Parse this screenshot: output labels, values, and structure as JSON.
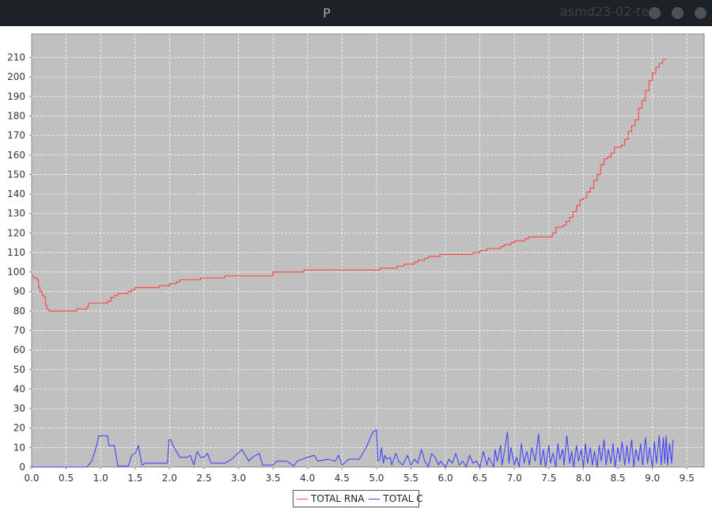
{
  "window": {
    "title": "P",
    "title_ghost": "asmd23-02-te..."
  },
  "colors": {
    "plot_bg": "#c0c0c0",
    "grid": "#ffffff",
    "rna": "#ff4444",
    "c": "#4444ff"
  },
  "chart_data": {
    "type": "line",
    "title": "",
    "xlabel": "",
    "ylabel": "",
    "xlim": [
      0.0,
      9.75
    ],
    "ylim": [
      0,
      222
    ],
    "x_ticks": [
      "0.0",
      "0.5",
      "1.0",
      "1.5",
      "2.0",
      "2.5",
      "3.0",
      "3.5",
      "4.0",
      "4.5",
      "5.0",
      "5.5",
      "6.0",
      "6.5",
      "7.0",
      "7.5",
      "8.0",
      "8.5",
      "9.0",
      "9.5"
    ],
    "y_ticks": [
      "0",
      "10",
      "20",
      "30",
      "40",
      "50",
      "60",
      "70",
      "80",
      "90",
      "100",
      "110",
      "120",
      "130",
      "140",
      "150",
      "160",
      "170",
      "180",
      "190",
      "200",
      "210"
    ],
    "grid": true,
    "legend_position": "bottom-center",
    "series": [
      {
        "name": "TOTAL RNA",
        "color": "#ff4444",
        "step": true,
        "points": [
          [
            0.0,
            98
          ],
          [
            0.03,
            97
          ],
          [
            0.08,
            96
          ],
          [
            0.1,
            92
          ],
          [
            0.12,
            90
          ],
          [
            0.15,
            88
          ],
          [
            0.18,
            87
          ],
          [
            0.2,
            83
          ],
          [
            0.22,
            81
          ],
          [
            0.25,
            80
          ],
          [
            0.6,
            80
          ],
          [
            0.65,
            81
          ],
          [
            0.8,
            82
          ],
          [
            0.82,
            84
          ],
          [
            1.05,
            84
          ],
          [
            1.1,
            85
          ],
          [
            1.15,
            87
          ],
          [
            1.2,
            88
          ],
          [
            1.25,
            89
          ],
          [
            1.4,
            90
          ],
          [
            1.45,
            91
          ],
          [
            1.5,
            92
          ],
          [
            1.8,
            92
          ],
          [
            1.85,
            93
          ],
          [
            2.0,
            94
          ],
          [
            2.1,
            95
          ],
          [
            2.15,
            96
          ],
          [
            2.4,
            96
          ],
          [
            2.45,
            97
          ],
          [
            2.7,
            97
          ],
          [
            2.8,
            98
          ],
          [
            3.4,
            98
          ],
          [
            3.5,
            99
          ],
          [
            3.5,
            100
          ],
          [
            3.9,
            100
          ],
          [
            3.95,
            101
          ],
          [
            5.0,
            101
          ],
          [
            5.05,
            102
          ],
          [
            5.25,
            102
          ],
          [
            5.3,
            103
          ],
          [
            5.4,
            104
          ],
          [
            5.55,
            105
          ],
          [
            5.6,
            106
          ],
          [
            5.7,
            107
          ],
          [
            5.75,
            108
          ],
          [
            5.9,
            108
          ],
          [
            5.92,
            109
          ],
          [
            6.35,
            109
          ],
          [
            6.4,
            110
          ],
          [
            6.5,
            111
          ],
          [
            6.6,
            112
          ],
          [
            6.75,
            112
          ],
          [
            6.8,
            113
          ],
          [
            6.85,
            114
          ],
          [
            6.95,
            115
          ],
          [
            7.0,
            116
          ],
          [
            7.15,
            117
          ],
          [
            7.2,
            118
          ],
          [
            7.5,
            118
          ],
          [
            7.55,
            120
          ],
          [
            7.6,
            123
          ],
          [
            7.7,
            124
          ],
          [
            7.75,
            126
          ],
          [
            7.8,
            128
          ],
          [
            7.85,
            131
          ],
          [
            7.9,
            134
          ],
          [
            7.95,
            137
          ],
          [
            8.0,
            138
          ],
          [
            8.05,
            141
          ],
          [
            8.1,
            143
          ],
          [
            8.15,
            147
          ],
          [
            8.2,
            150
          ],
          [
            8.25,
            155
          ],
          [
            8.3,
            158
          ],
          [
            8.35,
            159
          ],
          [
            8.4,
            161
          ],
          [
            8.45,
            164
          ],
          [
            8.55,
            165
          ],
          [
            8.6,
            168
          ],
          [
            8.65,
            172
          ],
          [
            8.7,
            175
          ],
          [
            8.75,
            178
          ],
          [
            8.8,
            184
          ],
          [
            8.85,
            188
          ],
          [
            8.9,
            193
          ],
          [
            8.95,
            198
          ],
          [
            9.0,
            202
          ],
          [
            9.05,
            205
          ],
          [
            9.1,
            207
          ],
          [
            9.15,
            209
          ],
          [
            9.2,
            209
          ]
        ]
      },
      {
        "name": "TOTAL C",
        "color": "#4444ff",
        "step": false,
        "points": [
          [
            0.0,
            0
          ],
          [
            0.05,
            0
          ],
          [
            0.5,
            0
          ],
          [
            0.8,
            0
          ],
          [
            0.87,
            3
          ],
          [
            0.9,
            6
          ],
          [
            0.95,
            12
          ],
          [
            0.97,
            16
          ],
          [
            1.05,
            16
          ],
          [
            1.1,
            16
          ],
          [
            1.12,
            11
          ],
          [
            1.2,
            11
          ],
          [
            1.25,
            0.5
          ],
          [
            1.4,
            0.5
          ],
          [
            1.45,
            6
          ],
          [
            1.5,
            7
          ],
          [
            1.55,
            11
          ],
          [
            1.6,
            1
          ],
          [
            1.65,
            2
          ],
          [
            1.9,
            2
          ],
          [
            1.97,
            2
          ],
          [
            1.99,
            14
          ],
          [
            2.02,
            14
          ],
          [
            2.05,
            11
          ],
          [
            2.1,
            8
          ],
          [
            2.15,
            5
          ],
          [
            2.25,
            5
          ],
          [
            2.3,
            6
          ],
          [
            2.35,
            1
          ],
          [
            2.4,
            8
          ],
          [
            2.45,
            5
          ],
          [
            2.5,
            5
          ],
          [
            2.55,
            7
          ],
          [
            2.6,
            2
          ],
          [
            2.8,
            2
          ],
          [
            2.9,
            4
          ],
          [
            3.05,
            9
          ],
          [
            3.15,
            3
          ],
          [
            3.2,
            5
          ],
          [
            3.3,
            7
          ],
          [
            3.35,
            1
          ],
          [
            3.5,
            1
          ],
          [
            3.55,
            3
          ],
          [
            3.7,
            3
          ],
          [
            3.8,
            0.5
          ],
          [
            3.85,
            3
          ],
          [
            4.0,
            5
          ],
          [
            4.1,
            6
          ],
          [
            4.15,
            3
          ],
          [
            4.3,
            4
          ],
          [
            4.4,
            3
          ],
          [
            4.45,
            6
          ],
          [
            4.5,
            1
          ],
          [
            4.6,
            4
          ],
          [
            4.75,
            4
          ],
          [
            4.85,
            10
          ],
          [
            4.95,
            18
          ],
          [
            5.0,
            19
          ],
          [
            5.02,
            3
          ],
          [
            5.05,
            4
          ],
          [
            5.07,
            10
          ],
          [
            5.1,
            2
          ],
          [
            5.12,
            6
          ],
          [
            5.15,
            4
          ],
          [
            5.2,
            5
          ],
          [
            5.22,
            1
          ],
          [
            5.28,
            7
          ],
          [
            5.32,
            3
          ],
          [
            5.38,
            1
          ],
          [
            5.45,
            6
          ],
          [
            5.5,
            1
          ],
          [
            5.55,
            4
          ],
          [
            5.6,
            2
          ],
          [
            5.65,
            9
          ],
          [
            5.7,
            3
          ],
          [
            5.75,
            0
          ],
          [
            5.8,
            7
          ],
          [
            5.85,
            5
          ],
          [
            5.9,
            1
          ],
          [
            5.93,
            3
          ],
          [
            6.0,
            0
          ],
          [
            6.05,
            4
          ],
          [
            6.1,
            2
          ],
          [
            6.15,
            7
          ],
          [
            6.2,
            1
          ],
          [
            6.25,
            3
          ],
          [
            6.3,
            0
          ],
          [
            6.35,
            6
          ],
          [
            6.4,
            2
          ],
          [
            6.45,
            3
          ],
          [
            6.5,
            0
          ],
          [
            6.55,
            8
          ],
          [
            6.6,
            1
          ],
          [
            6.63,
            5
          ],
          [
            6.7,
            0
          ],
          [
            6.72,
            9
          ],
          [
            6.75,
            3
          ],
          [
            6.8,
            11
          ],
          [
            6.82,
            1
          ],
          [
            6.85,
            7
          ],
          [
            6.9,
            18
          ],
          [
            6.92,
            2
          ],
          [
            6.95,
            10
          ],
          [
            7.0,
            1
          ],
          [
            7.03,
            5
          ],
          [
            7.07,
            0
          ],
          [
            7.1,
            12
          ],
          [
            7.14,
            2
          ],
          [
            7.18,
            8
          ],
          [
            7.22,
            1
          ],
          [
            7.25,
            10
          ],
          [
            7.3,
            3
          ],
          [
            7.35,
            17
          ],
          [
            7.38,
            1
          ],
          [
            7.42,
            9
          ],
          [
            7.45,
            0
          ],
          [
            7.5,
            11
          ],
          [
            7.52,
            2
          ],
          [
            7.56,
            7
          ],
          [
            7.6,
            0
          ],
          [
            7.63,
            12
          ],
          [
            7.66,
            4
          ],
          [
            7.7,
            9
          ],
          [
            7.72,
            1
          ],
          [
            7.76,
            16
          ],
          [
            7.8,
            2
          ],
          [
            7.83,
            8
          ],
          [
            7.86,
            0
          ],
          [
            7.9,
            11
          ],
          [
            7.93,
            3
          ],
          [
            7.97,
            9
          ],
          [
            8.0,
            0
          ],
          [
            8.03,
            12
          ],
          [
            8.06,
            2
          ],
          [
            8.1,
            10
          ],
          [
            8.13,
            1
          ],
          [
            8.16,
            8
          ],
          [
            8.2,
            0
          ],
          [
            8.23,
            11
          ],
          [
            8.26,
            3
          ],
          [
            8.3,
            14
          ],
          [
            8.33,
            1
          ],
          [
            8.36,
            9
          ],
          [
            8.4,
            2
          ],
          [
            8.43,
            12
          ],
          [
            8.46,
            0
          ],
          [
            8.5,
            10
          ],
          [
            8.53,
            3
          ],
          [
            8.56,
            13
          ],
          [
            8.6,
            1
          ],
          [
            8.63,
            11
          ],
          [
            8.66,
            2
          ],
          [
            8.7,
            14
          ],
          [
            8.73,
            0
          ],
          [
            8.76,
            9
          ],
          [
            8.8,
            3
          ],
          [
            8.83,
            12
          ],
          [
            8.86,
            1
          ],
          [
            8.9,
            15
          ],
          [
            8.93,
            2
          ],
          [
            8.96,
            10
          ],
          [
            9.0,
            0
          ],
          [
            9.03,
            13
          ],
          [
            9.06,
            2
          ],
          [
            9.1,
            16
          ],
          [
            9.13,
            1
          ],
          [
            9.16,
            15
          ],
          [
            9.18,
            2
          ],
          [
            9.2,
            16
          ],
          [
            9.22,
            1
          ],
          [
            9.25,
            12
          ],
          [
            9.28,
            2
          ],
          [
            9.3,
            14
          ]
        ]
      }
    ]
  }
}
